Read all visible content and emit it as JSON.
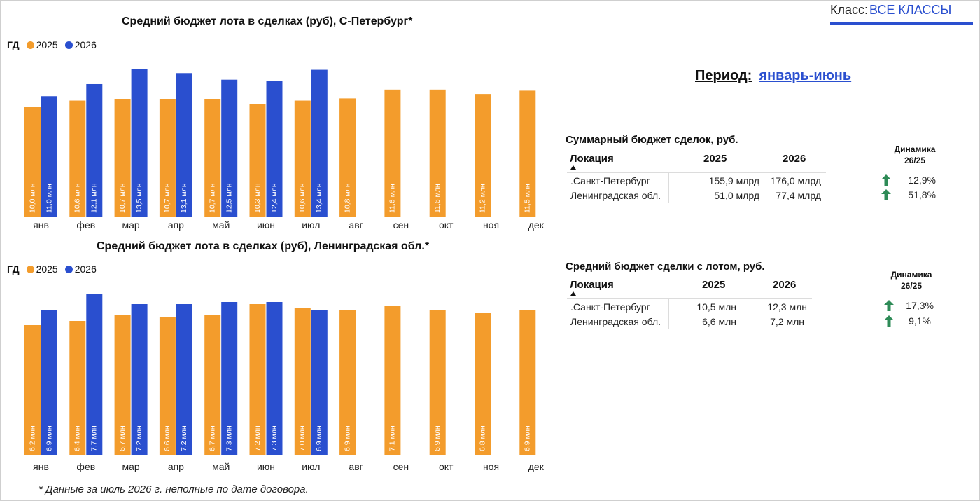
{
  "colors": {
    "y2025": "#f39c2c",
    "y2026": "#2a4fcf",
    "arrow": "#2e8b57",
    "accent": "#2a4fcf"
  },
  "header": {
    "class_label": "Класс:",
    "class_value": "ВСЕ КЛАССЫ"
  },
  "period": {
    "label": "Период:",
    "value": "январь-июнь"
  },
  "legend": {
    "gd": "ГД",
    "s2025": "2025",
    "s2026": "2026"
  },
  "chart_data": [
    {
      "type": "bar",
      "title": "Средний бюджет  лота в сделках (руб), С-Петербург*",
      "categories": [
        "янв",
        "фев",
        "мар",
        "апр",
        "май",
        "июн",
        "июл",
        "авг",
        "сен",
        "окт",
        "ноя",
        "дек"
      ],
      "series": [
        {
          "name": "2025",
          "values": [
            10.0,
            10.6,
            10.7,
            10.7,
            10.7,
            10.3,
            10.6,
            10.8,
            11.6,
            11.6,
            11.2,
            11.5
          ],
          "labels": [
            "10,0 млн",
            "10,6 млн",
            "10,7 млн",
            "10,7 млн",
            "10,7 млн",
            "10,3 млн",
            "10,6 млн",
            "10,8 млн",
            "11,6 млн",
            "11,6 млн",
            "11,2 млн",
            "11,5 млн"
          ]
        },
        {
          "name": "2026",
          "values": [
            11.0,
            12.1,
            13.5,
            13.1,
            12.5,
            12.4,
            13.4,
            null,
            null,
            null,
            null,
            null
          ],
          "labels": [
            "11,0 млн",
            "12,1 млн",
            "13,5 млн",
            "13,1 млн",
            "12,5 млн",
            "12,4 млн",
            "13,4 млн",
            "",
            "",
            "",
            "",
            ""
          ]
        }
      ],
      "ylabel": "",
      "xlabel": "",
      "ylim": [
        0,
        14
      ],
      "grid": false,
      "legend_position": "top-left"
    },
    {
      "type": "bar",
      "title": "Средний бюджет  лота в сделках (руб), Ленинградская обл.*",
      "categories": [
        "янв",
        "фев",
        "мар",
        "апр",
        "май",
        "июн",
        "июл",
        "авг",
        "сен",
        "окт",
        "ноя",
        "дек"
      ],
      "series": [
        {
          "name": "2025",
          "values": [
            6.2,
            6.4,
            6.7,
            6.6,
            6.7,
            7.2,
            7.0,
            6.9,
            7.1,
            6.9,
            6.8,
            6.9
          ],
          "labels": [
            "6,2 млн",
            "6,4 млн",
            "6,7 млн",
            "6,6 млн",
            "6,7 млн",
            "7,2 млн",
            "7,0 млн",
            "6,9 млн",
            "7,1 млн",
            "6,9 млн",
            "6,8 млн",
            "6,9 млн"
          ]
        },
        {
          "name": "2026",
          "values": [
            6.9,
            7.7,
            7.2,
            7.2,
            7.3,
            7.3,
            6.9,
            null,
            null,
            null,
            null,
            null
          ],
          "labels": [
            "6,9 млн",
            "7,7 млн",
            "7,2 млн",
            "7,2 млн",
            "7,3 млн",
            "7,3 млн",
            "6,9 млн",
            "",
            "",
            "",
            "",
            ""
          ]
        }
      ],
      "ylabel": "",
      "xlabel": "",
      "ylim": [
        0,
        8
      ],
      "grid": false,
      "legend_position": "top-left"
    }
  ],
  "tables": [
    {
      "title": "Суммарный бюджет сделок, руб.",
      "headers": {
        "location": "Локация",
        "y2025": "2025",
        "y2026": "2026",
        "dynamics_l1": "Динамика",
        "dynamics_l2": "26/25"
      },
      "rows": [
        {
          "location": ".Санкт-Петербург",
          "v2025": "155,9 млрд",
          "v2026": "176,0 млрд",
          "dyn": "12,9%"
        },
        {
          "location": "Ленинградская обл.",
          "v2025": "51,0 млрд",
          "v2026": "77,4 млрд",
          "dyn": "51,8%"
        }
      ]
    },
    {
      "title": "Средний бюджет сделки с лотом, руб.",
      "headers": {
        "location": "Локация",
        "y2025": "2025",
        "y2026": "2026",
        "dynamics_l1": "Динамика",
        "dynamics_l2": "26/25"
      },
      "rows": [
        {
          "location": ".Санкт-Петербург",
          "v2025": "10,5 млн",
          "v2026": "12,3 млн",
          "dyn": "17,3%"
        },
        {
          "location": "Ленинградская обл.",
          "v2025": "6,6 млн",
          "v2026": "7,2 млн",
          "dyn": "9,1%"
        }
      ]
    }
  ],
  "footnote": "* Данные за июль 2026 г. неполные по дате договора."
}
